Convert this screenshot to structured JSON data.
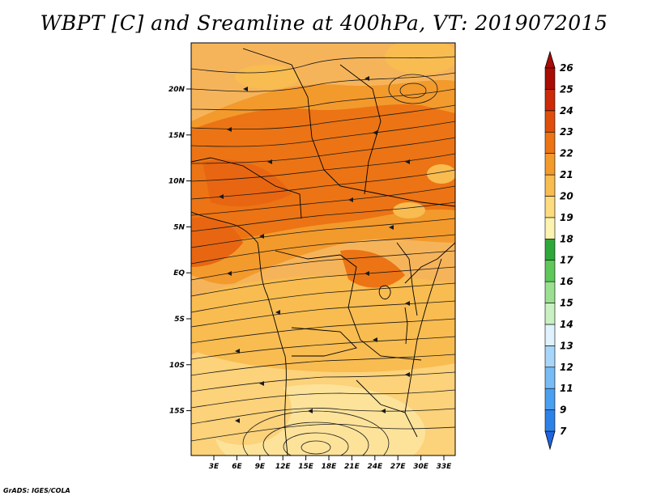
{
  "title": "WBPT [C] and Sreamline at 400hPa, VT: 2019072015",
  "credit": "GrADS: IGES/COLA",
  "lat_ticks": [
    "20N",
    "15N",
    "10N",
    "5N",
    "EQ",
    "5S",
    "10S",
    "15S"
  ],
  "lon_ticks": [
    "3E",
    "6E",
    "9E",
    "12E",
    "15E",
    "18E",
    "21E",
    "24E",
    "27E",
    "30E",
    "33E"
  ],
  "colorbar": {
    "labels": [
      "7",
      "9",
      "11",
      "12",
      "13",
      "14",
      "15",
      "16",
      "17",
      "18",
      "19",
      "20",
      "21",
      "22",
      "23",
      "24",
      "25",
      "26"
    ],
    "colors": [
      "#1f64de",
      "#2b82e8",
      "#4aa0f0",
      "#78bcf6",
      "#a8d6fa",
      "#dff2fd",
      "#c9f0c2",
      "#9be090",
      "#5ec85a",
      "#2ea83a",
      "#fdf3b0",
      "#fcdc7e",
      "#f8bc50",
      "#f39a2c",
      "#ec7414",
      "#e04e0c",
      "#cc2a08",
      "#a80c04"
    ]
  }
}
